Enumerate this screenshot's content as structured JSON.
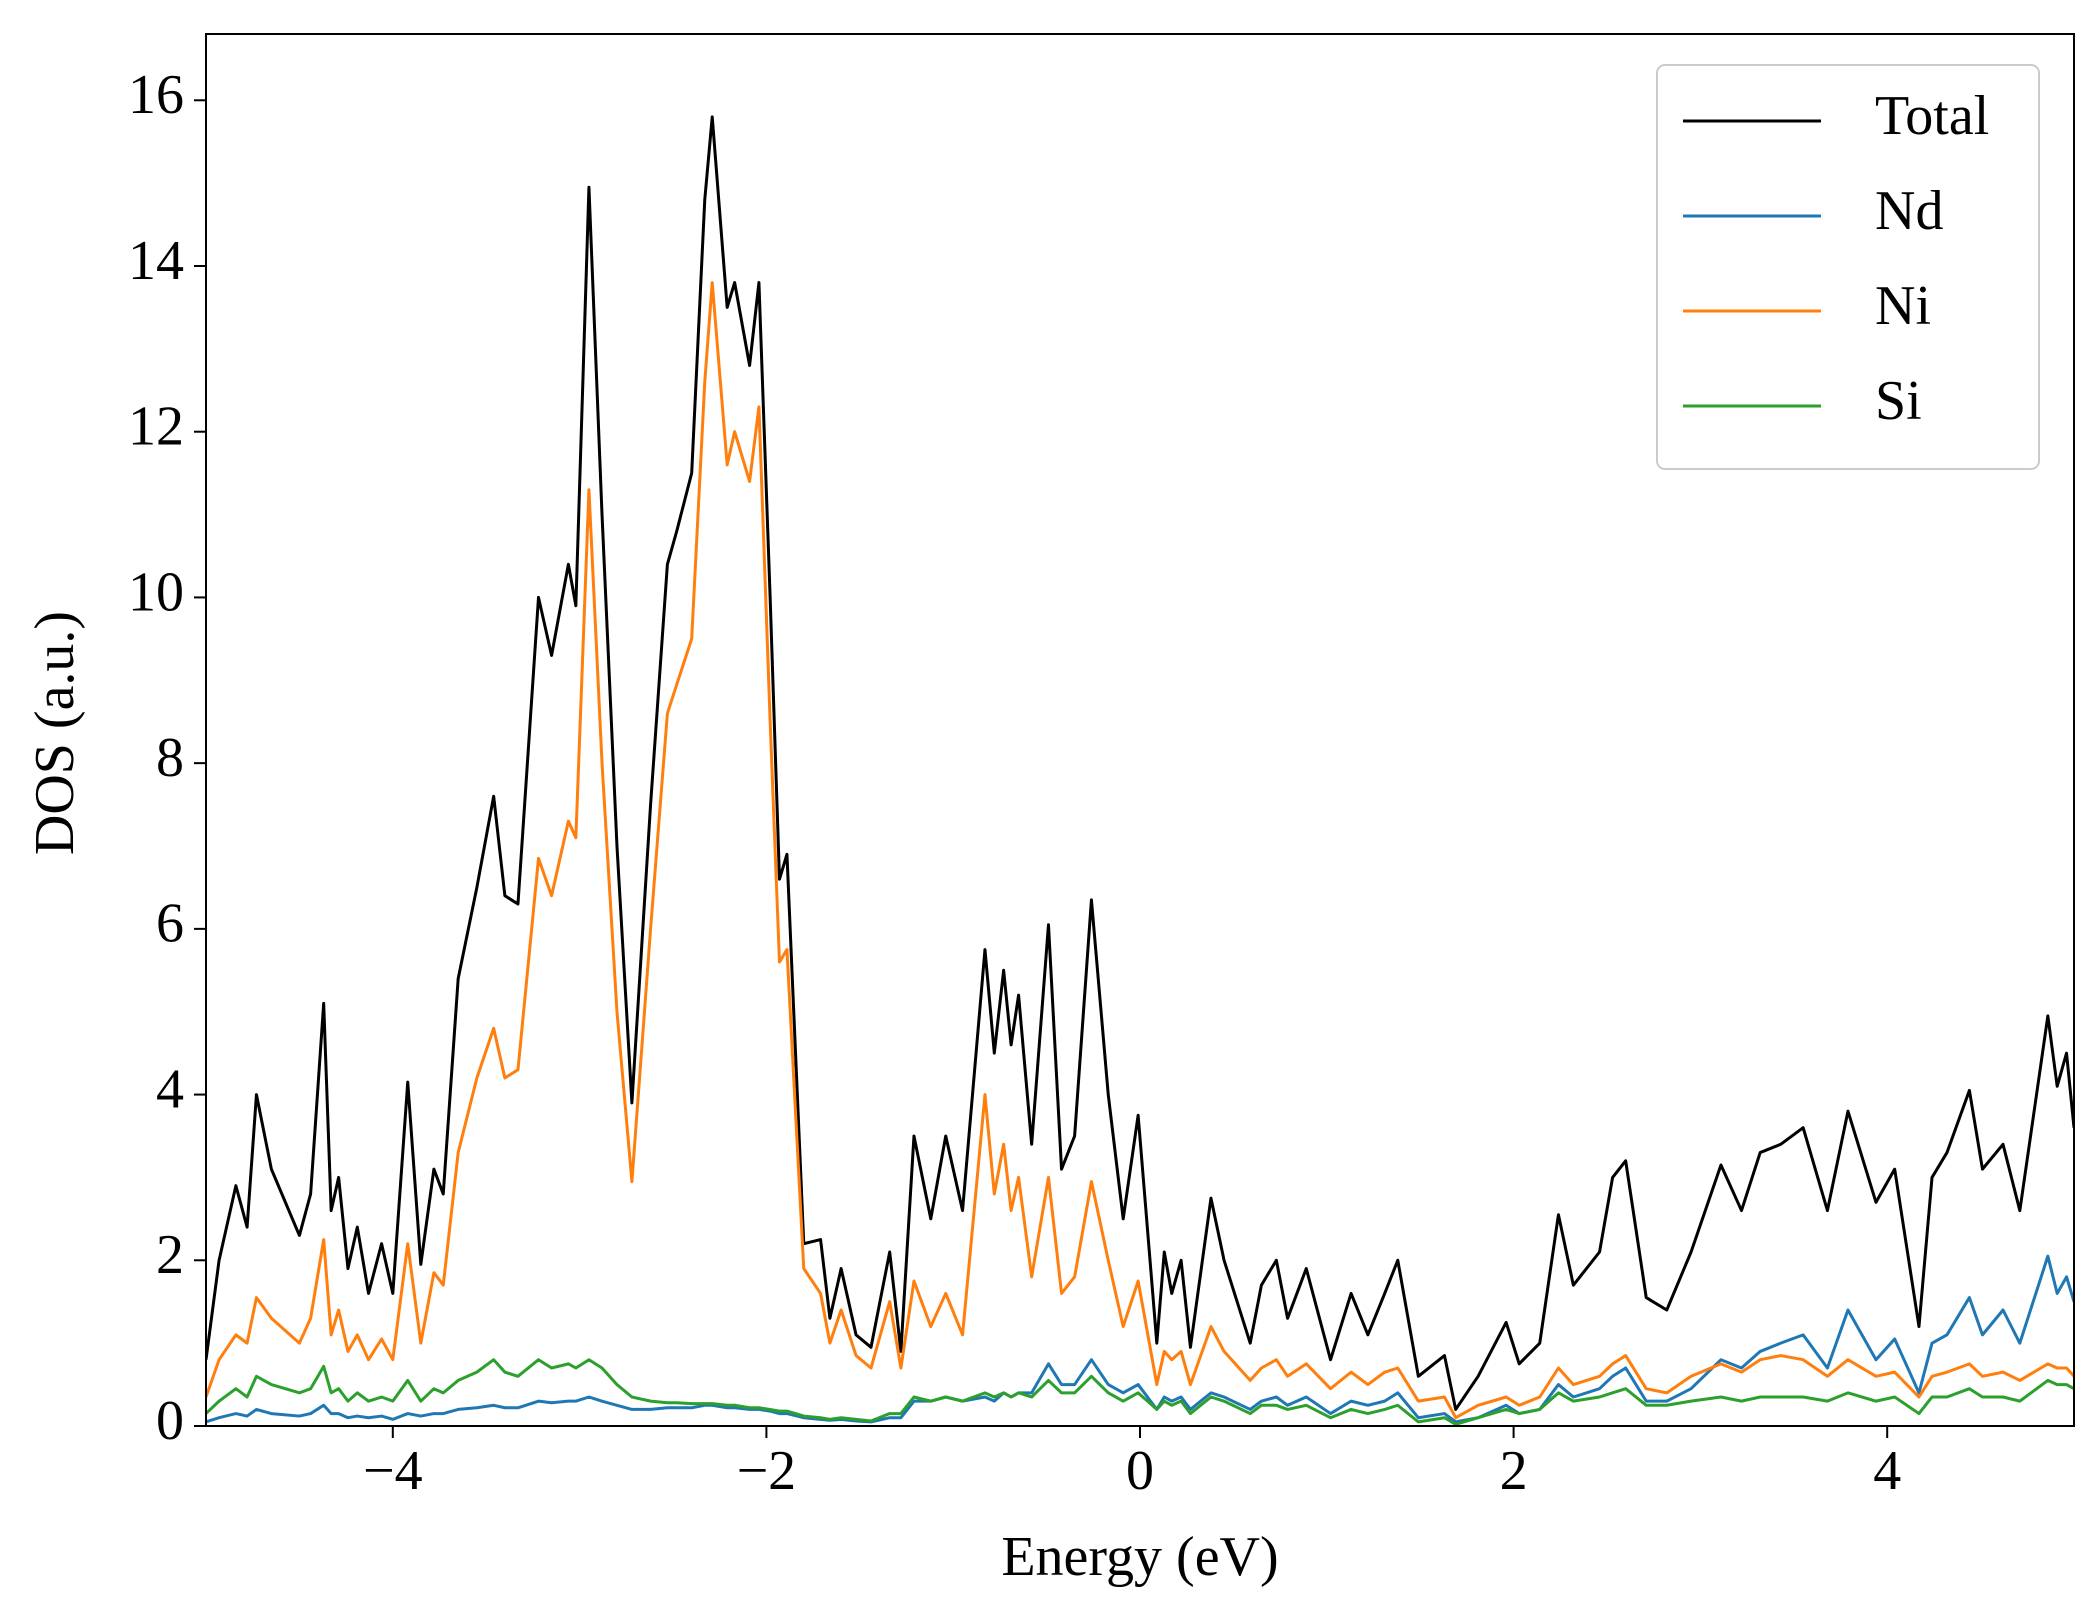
{
  "chart_data": {
    "type": "line",
    "xlabel": "Energy (eV)",
    "ylabel": "DOS (a.u.)",
    "x": [
      -5.0,
      -4.93,
      -4.84,
      -4.78,
      -4.73,
      -4.65,
      -4.5,
      -4.44,
      -4.37,
      -4.33,
      -4.29,
      -4.24,
      -4.19,
      -4.13,
      -4.06,
      -4.0,
      -3.92,
      -3.85,
      -3.78,
      -3.73,
      -3.65,
      -3.55,
      -3.46,
      -3.4,
      -3.33,
      -3.22,
      -3.15,
      -3.06,
      -3.02,
      -2.95,
      -2.88,
      -2.8,
      -2.72,
      -2.62,
      -2.53,
      -2.48,
      -2.4,
      -2.33,
      -2.29,
      -2.21,
      -2.17,
      -2.09,
      -2.04,
      -1.98,
      -1.93,
      -1.89,
      -1.8,
      -1.71,
      -1.66,
      -1.6,
      -1.52,
      -1.44,
      -1.34,
      -1.28,
      -1.21,
      -1.12,
      -1.04,
      -0.95,
      -0.83,
      -0.78,
      -0.73,
      -0.69,
      -0.65,
      -0.58,
      -0.49,
      -0.42,
      -0.35,
      -0.26,
      -0.17,
      -0.09,
      -0.01,
      0.09,
      0.13,
      0.17,
      0.22,
      0.27,
      0.38,
      0.45,
      0.59,
      0.65,
      0.73,
      0.79,
      0.89,
      1.02,
      1.13,
      1.22,
      1.31,
      1.38,
      1.49,
      1.63,
      1.69,
      1.81,
      1.96,
      2.03,
      2.14,
      2.24,
      2.32,
      2.46,
      2.53,
      2.6,
      2.71,
      2.82,
      2.95,
      3.11,
      3.22,
      3.32,
      3.43,
      3.55,
      3.68,
      3.79,
      3.94,
      4.04,
      4.17,
      4.24,
      4.32,
      4.44,
      4.51,
      4.62,
      4.71,
      4.86,
      4.91,
      4.96,
      5.0
    ],
    "series": [
      {
        "name": "Total",
        "color": "#000000",
        "values": [
          0.8,
          2.0,
          2.9,
          2.4,
          4.0,
          3.1,
          2.3,
          2.8,
          5.1,
          2.6,
          3.0,
          1.9,
          2.4,
          1.6,
          2.2,
          1.6,
          4.15,
          1.95,
          3.1,
          2.8,
          5.4,
          6.5,
          7.6,
          6.4,
          6.3,
          10.0,
          9.3,
          10.4,
          9.9,
          14.95,
          11.0,
          7.0,
          3.9,
          7.5,
          10.4,
          10.8,
          11.5,
          14.8,
          15.8,
          13.5,
          13.8,
          12.8,
          13.8,
          10.0,
          6.6,
          6.9,
          2.2,
          2.25,
          1.3,
          1.9,
          1.1,
          0.95,
          2.1,
          0.9,
          3.5,
          2.5,
          3.5,
          2.6,
          5.75,
          4.5,
          5.5,
          4.6,
          5.2,
          3.4,
          6.05,
          3.1,
          3.5,
          6.35,
          4.0,
          2.5,
          3.75,
          1.0,
          2.1,
          1.6,
          2.0,
          0.95,
          2.75,
          2.0,
          1.0,
          1.7,
          2.0,
          1.3,
          1.9,
          0.8,
          1.6,
          1.1,
          1.6,
          2.0,
          0.6,
          0.85,
          0.2,
          0.6,
          1.25,
          0.75,
          1.0,
          2.55,
          1.7,
          2.1,
          3.0,
          3.2,
          1.55,
          1.4,
          2.1,
          3.15,
          2.6,
          3.3,
          3.4,
          3.6,
          2.6,
          3.8,
          2.7,
          3.1,
          1.2,
          3.0,
          3.3,
          4.05,
          3.1,
          3.4,
          2.6,
          4.95,
          4.1,
          4.5,
          3.6
        ]
      },
      {
        "name": "Nd",
        "color": "#1f77b4",
        "values": [
          0.05,
          0.1,
          0.15,
          0.12,
          0.2,
          0.15,
          0.12,
          0.15,
          0.25,
          0.15,
          0.15,
          0.1,
          0.12,
          0.1,
          0.12,
          0.08,
          0.15,
          0.12,
          0.15,
          0.15,
          0.2,
          0.22,
          0.25,
          0.22,
          0.22,
          0.3,
          0.28,
          0.3,
          0.3,
          0.35,
          0.3,
          0.25,
          0.2,
          0.2,
          0.22,
          0.22,
          0.22,
          0.25,
          0.25,
          0.22,
          0.22,
          0.2,
          0.2,
          0.18,
          0.15,
          0.15,
          0.1,
          0.08,
          0.07,
          0.08,
          0.06,
          0.05,
          0.1,
          0.1,
          0.3,
          0.3,
          0.35,
          0.3,
          0.35,
          0.3,
          0.4,
          0.35,
          0.4,
          0.4,
          0.75,
          0.5,
          0.5,
          0.8,
          0.5,
          0.4,
          0.5,
          0.2,
          0.35,
          0.3,
          0.35,
          0.2,
          0.4,
          0.35,
          0.2,
          0.3,
          0.35,
          0.25,
          0.35,
          0.15,
          0.3,
          0.25,
          0.3,
          0.4,
          0.1,
          0.15,
          0.05,
          0.1,
          0.25,
          0.15,
          0.2,
          0.5,
          0.35,
          0.45,
          0.6,
          0.7,
          0.3,
          0.3,
          0.45,
          0.8,
          0.7,
          0.9,
          1.0,
          1.1,
          0.7,
          1.4,
          0.8,
          1.05,
          0.4,
          1.0,
          1.1,
          1.55,
          1.1,
          1.4,
          1.0,
          2.05,
          1.6,
          1.8,
          1.5
        ]
      },
      {
        "name": "Ni",
        "color": "#ff7f0e",
        "values": [
          0.35,
          0.8,
          1.1,
          1.0,
          1.55,
          1.3,
          1.0,
          1.3,
          2.25,
          1.1,
          1.4,
          0.9,
          1.1,
          0.8,
          1.05,
          0.8,
          2.2,
          1.0,
          1.85,
          1.7,
          3.3,
          4.2,
          4.8,
          4.2,
          4.3,
          6.85,
          6.4,
          7.3,
          7.1,
          11.3,
          8.0,
          5.0,
          2.95,
          6.0,
          8.6,
          8.95,
          9.5,
          12.6,
          13.8,
          11.6,
          12.0,
          11.4,
          12.3,
          8.5,
          5.6,
          5.75,
          1.9,
          1.6,
          1.0,
          1.4,
          0.85,
          0.7,
          1.5,
          0.7,
          1.75,
          1.2,
          1.6,
          1.1,
          4.0,
          2.8,
          3.4,
          2.6,
          3.0,
          1.8,
          3.0,
          1.6,
          1.8,
          2.95,
          2.0,
          1.2,
          1.75,
          0.5,
          0.9,
          0.8,
          0.9,
          0.5,
          1.2,
          0.9,
          0.55,
          0.7,
          0.8,
          0.6,
          0.75,
          0.45,
          0.65,
          0.5,
          0.65,
          0.7,
          0.3,
          0.35,
          0.1,
          0.25,
          0.35,
          0.25,
          0.35,
          0.7,
          0.5,
          0.6,
          0.75,
          0.85,
          0.45,
          0.4,
          0.6,
          0.75,
          0.65,
          0.8,
          0.85,
          0.8,
          0.6,
          0.8,
          0.6,
          0.65,
          0.35,
          0.6,
          0.65,
          0.75,
          0.6,
          0.65,
          0.55,
          0.75,
          0.7,
          0.7,
          0.6
        ]
      },
      {
        "name": "Si",
        "color": "#2ca02c",
        "values": [
          0.15,
          0.3,
          0.45,
          0.35,
          0.6,
          0.5,
          0.4,
          0.45,
          0.72,
          0.4,
          0.45,
          0.3,
          0.4,
          0.3,
          0.35,
          0.3,
          0.55,
          0.3,
          0.45,
          0.4,
          0.55,
          0.65,
          0.8,
          0.65,
          0.6,
          0.8,
          0.7,
          0.75,
          0.7,
          0.8,
          0.7,
          0.5,
          0.35,
          0.3,
          0.28,
          0.28,
          0.27,
          0.27,
          0.27,
          0.25,
          0.25,
          0.22,
          0.22,
          0.2,
          0.18,
          0.18,
          0.12,
          0.1,
          0.08,
          0.1,
          0.08,
          0.06,
          0.15,
          0.15,
          0.35,
          0.3,
          0.35,
          0.3,
          0.4,
          0.35,
          0.4,
          0.35,
          0.4,
          0.35,
          0.55,
          0.4,
          0.4,
          0.6,
          0.4,
          0.3,
          0.4,
          0.2,
          0.3,
          0.25,
          0.3,
          0.15,
          0.35,
          0.3,
          0.15,
          0.25,
          0.25,
          0.2,
          0.25,
          0.1,
          0.2,
          0.15,
          0.2,
          0.25,
          0.05,
          0.1,
          0.02,
          0.1,
          0.2,
          0.15,
          0.2,
          0.4,
          0.3,
          0.35,
          0.4,
          0.45,
          0.25,
          0.25,
          0.3,
          0.35,
          0.3,
          0.35,
          0.35,
          0.35,
          0.3,
          0.4,
          0.3,
          0.35,
          0.15,
          0.35,
          0.35,
          0.45,
          0.35,
          0.35,
          0.3,
          0.55,
          0.5,
          0.5,
          0.45
        ]
      }
    ],
    "xlim": [
      -5,
      5
    ],
    "ylim": [
      0,
      16.8
    ],
    "xticks": [
      {
        "value": -4,
        "label": "−4"
      },
      {
        "value": -2,
        "label": "−2"
      },
      0,
      2,
      4
    ],
    "yticks": [
      0,
      2,
      4,
      6,
      8,
      10,
      12,
      14,
      16
    ],
    "legend": "upper right",
    "grid": false
  }
}
